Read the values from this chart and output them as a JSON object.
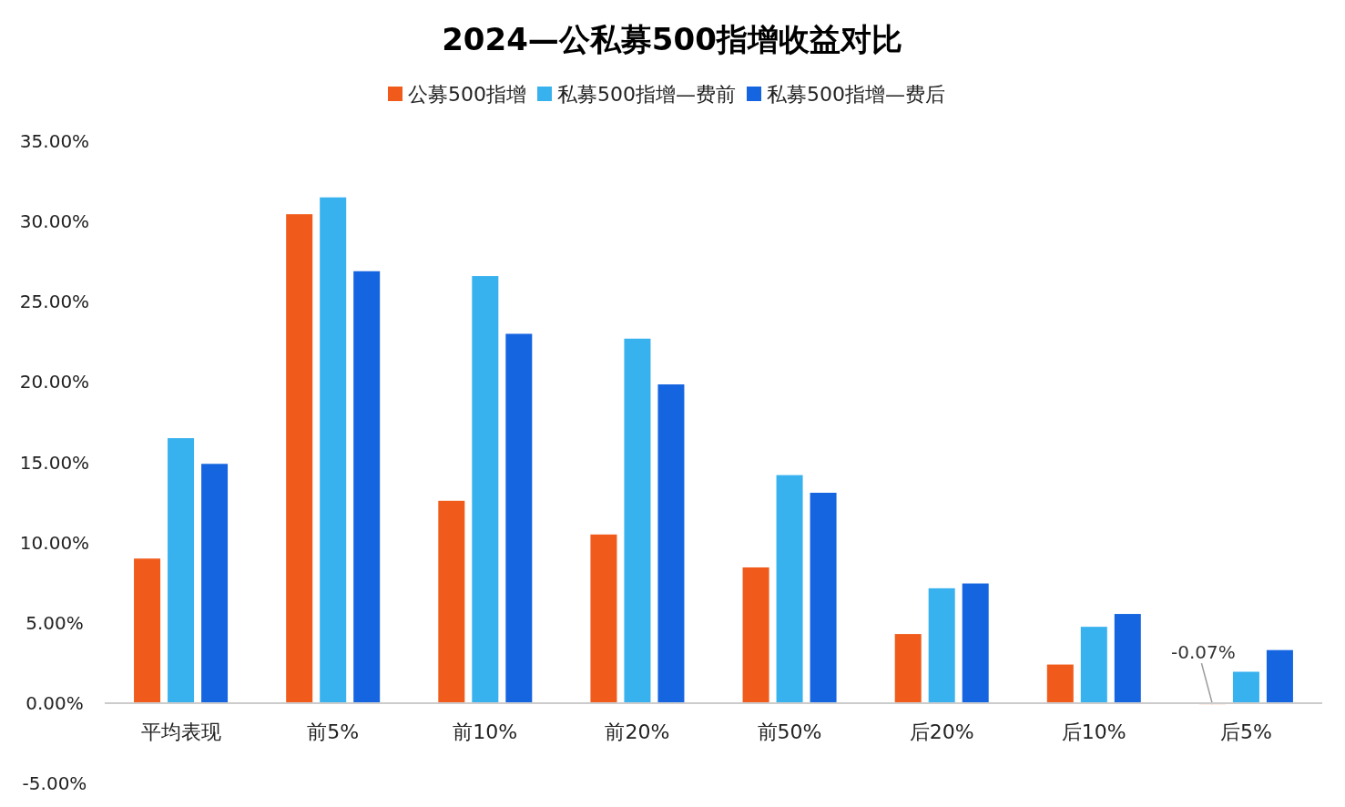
{
  "chart_data": {
    "type": "bar",
    "title": "2024—公私募500指增收益对比",
    "categories": [
      "平均表现",
      "前5%",
      "前10%",
      "前20%",
      "前50%",
      "后20%",
      "后10%",
      "后5%"
    ],
    "series": [
      {
        "name": "公募500指增",
        "color": "#f05a1a",
        "values": [
          9.0,
          30.45,
          12.6,
          10.5,
          8.45,
          4.3,
          2.4,
          -0.07
        ],
        "value_labels": [
          null,
          null,
          null,
          null,
          null,
          null,
          null,
          "-0.07%"
        ]
      },
      {
        "name": "私募500指增—费前",
        "color": "#38b2ef",
        "values": [
          16.5,
          31.5,
          26.6,
          22.7,
          14.2,
          7.15,
          4.75,
          1.95
        ]
      },
      {
        "name": "私募500指增—费后",
        "color": "#1665e0",
        "values": [
          14.9,
          26.9,
          23.0,
          19.85,
          13.1,
          7.45,
          5.55,
          3.3
        ]
      }
    ],
    "ylim": [
      -5,
      35
    ],
    "yticks": [
      {
        "value": -5,
        "label": "-5.00%"
      },
      {
        "value": 0,
        "label": "0.00%"
      },
      {
        "value": 5,
        "label": "5.00%"
      },
      {
        "value": 10,
        "label": "10.00%"
      },
      {
        "value": 15,
        "label": "15.00%"
      },
      {
        "value": 20,
        "label": "20.00%"
      },
      {
        "value": 25,
        "label": "25.00%"
      },
      {
        "value": 30,
        "label": "30.00%"
      },
      {
        "value": 35,
        "label": "35.00%"
      }
    ],
    "grid": false,
    "legend": "top"
  }
}
